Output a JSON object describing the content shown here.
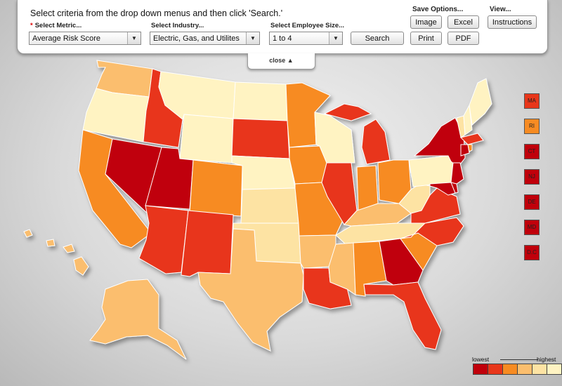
{
  "controls": {
    "instruction": "Select criteria from the drop down menus and then click 'Search.'",
    "metric_label": "Select Metric...",
    "metric_value": "Average Risk Score",
    "industry_label": "Select Industry...",
    "industry_value": "Electric, Gas, and Utilites",
    "size_label": "Select Employee Size...",
    "size_value": "1 to 4",
    "search_label": "Search"
  },
  "save_options": {
    "title": "Save Options...",
    "image": "Image",
    "excel": "Excel",
    "print": "Print",
    "pdf": "PDF"
  },
  "view": {
    "title": "View...",
    "instructions": "Instructions"
  },
  "close_label": "close ▲",
  "colors": {
    "dark_red": "#c0000b",
    "red": "#e8361a",
    "dark_orange": "#f78b22",
    "orange": "#fbbe6e",
    "light": "#fde3a3",
    "pale": "#fff3c2"
  },
  "small_states": [
    {
      "abbr": "MA",
      "color": "#e8361a"
    },
    {
      "abbr": "RI",
      "color": "#f78b22"
    },
    {
      "abbr": "CT",
      "color": "#c0000b"
    },
    {
      "abbr": "NJ",
      "color": "#c0000b"
    },
    {
      "abbr": "DE",
      "color": "#c0000b"
    },
    {
      "abbr": "MD",
      "color": "#c0000b"
    },
    {
      "abbr": "D.C",
      "color": "#c0000b"
    }
  ],
  "legend": {
    "low": "lowest",
    "high": "highest",
    "colors": [
      "#c0000b",
      "#e8361a",
      "#f78b22",
      "#fbbe6e",
      "#fde3a3",
      "#fff3c2"
    ]
  }
}
